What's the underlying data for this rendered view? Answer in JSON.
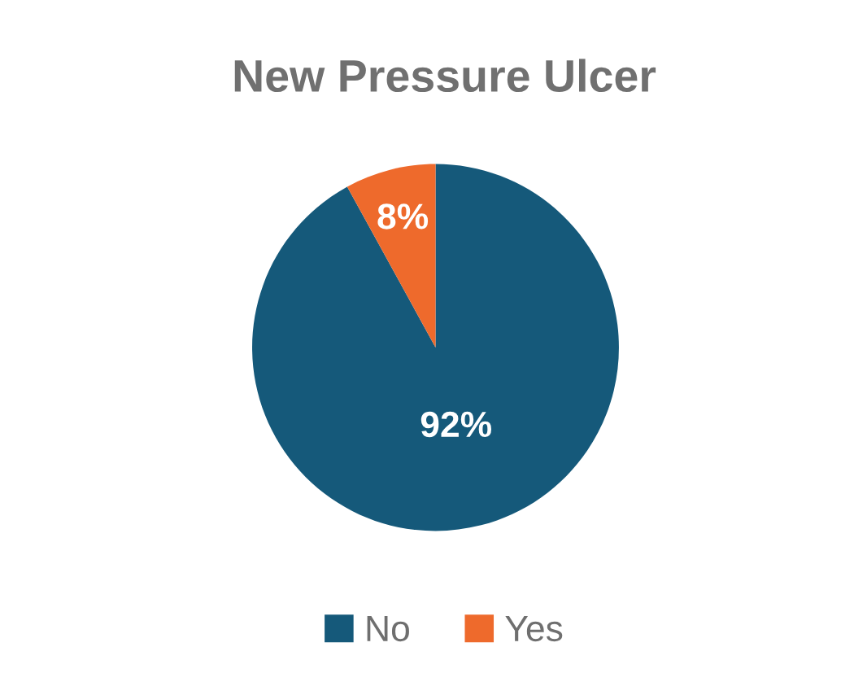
{
  "chart_data": {
    "type": "pie",
    "title": "New Pressure Ulcer",
    "categories": [
      "No",
      "Yes"
    ],
    "values": [
      92,
      8
    ],
    "colors": [
      "#15597a",
      "#ee6a2c"
    ],
    "value_labels": [
      "92%",
      "8%"
    ],
    "legend": "bottom"
  }
}
